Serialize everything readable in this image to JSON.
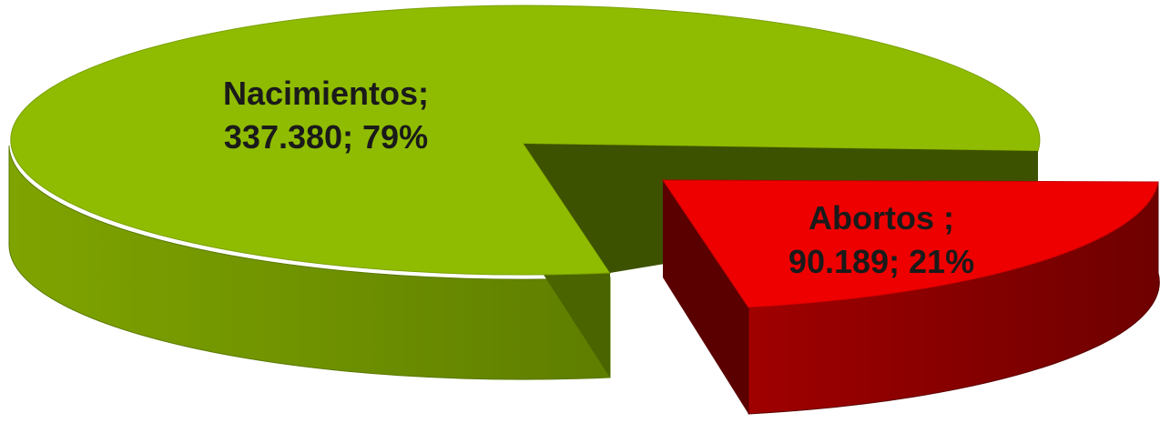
{
  "chart_data": {
    "type": "pie",
    "style": "3d-exploded",
    "legend": "none",
    "slices": [
      {
        "name": "Nacimientos",
        "value": 337380,
        "percent": 79,
        "label_name": "Nacimientos;",
        "label_value": "337.380; 79%",
        "color": "#8fbc00",
        "side_color": "#6a8c00",
        "inner_color": "#3d5200"
      },
      {
        "name": "Abortos",
        "value": 90189,
        "percent": 21,
        "label_name": "Abortos ;",
        "label_value": "90.189; 21%",
        "color": "#ee0000",
        "side_color": "#8a0000",
        "inner_color": "#5a0000"
      }
    ]
  }
}
